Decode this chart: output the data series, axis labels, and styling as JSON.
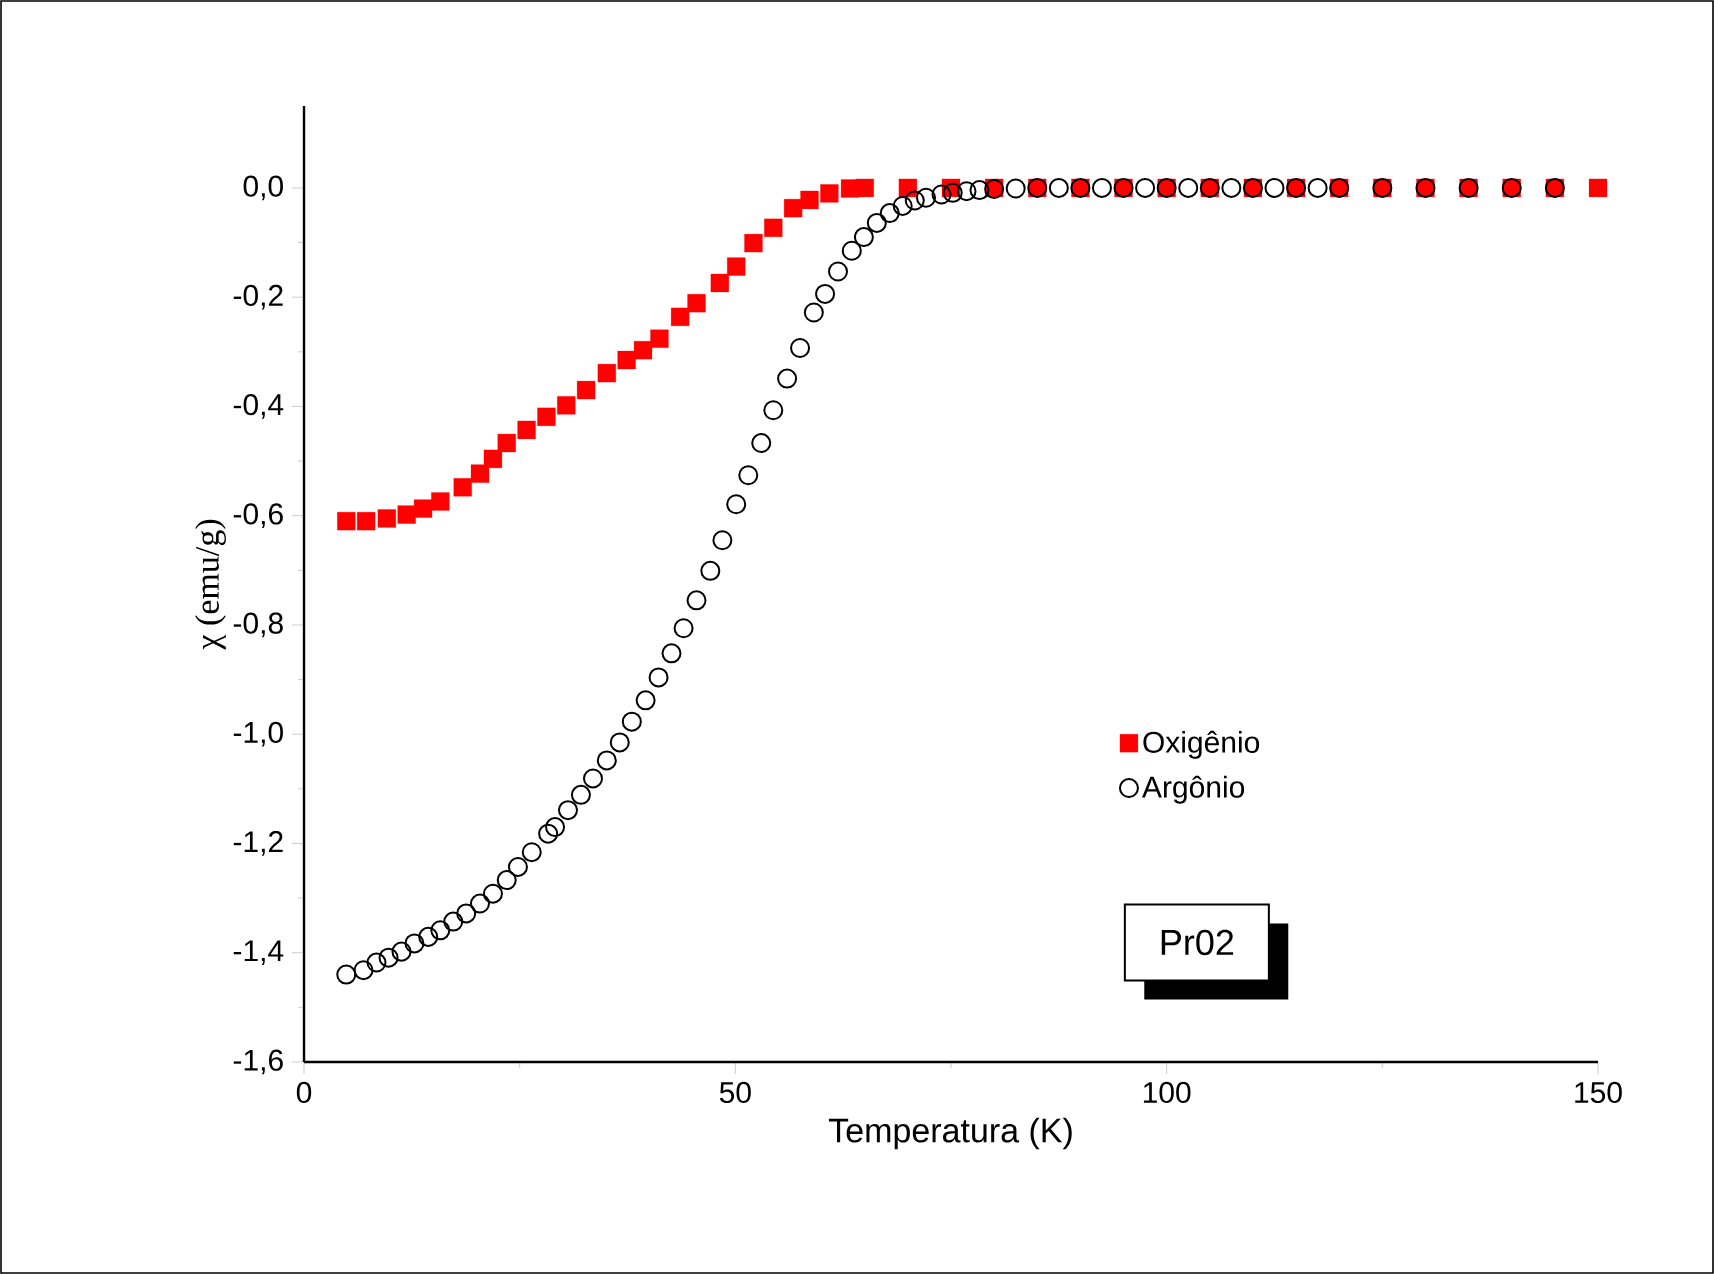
{
  "chart_data": {
    "type": "scatter",
    "xlabel": "Temperatura (K)",
    "ylabel": "χ (emu/g)",
    "xlim": [
      0,
      150
    ],
    "xticks": [
      0,
      50,
      100,
      150
    ],
    "ylim": [
      -1.6,
      0.15
    ],
    "yticks": [
      {
        "value": -1.6,
        "label": "-1,6"
      },
      {
        "value": -1.4,
        "label": "-1,4"
      },
      {
        "value": -1.2,
        "label": "-1,2"
      },
      {
        "value": -1.0,
        "label": "-1,0"
      },
      {
        "value": -0.8,
        "label": "-0,8"
      },
      {
        "value": -0.6,
        "label": "-0,6"
      },
      {
        "value": -0.4,
        "label": "-0,4"
      },
      {
        "value": -0.2,
        "label": "-0,2"
      },
      {
        "value": 0.0,
        "label": "0,0"
      }
    ],
    "legend": "right",
    "grid": false,
    "annotations": [
      "Pr02"
    ],
    "series": [
      {
        "name": "Oxigênio",
        "color": "#ff0000",
        "marker": "square",
        "x": [
          4.9,
          7.2,
          9.6,
          11.9,
          13.8,
          15.8,
          18.4,
          20.4,
          21.9,
          23.5,
          25.8,
          28.1,
          30.4,
          32.7,
          35.1,
          37.4,
          39.3,
          41.2,
          43.6,
          45.5,
          48.2,
          50.1,
          52.1,
          54.4,
          56.7,
          58.6,
          60.9,
          63.3,
          65,
          70,
          75,
          80,
          85,
          90,
          95,
          100,
          105,
          110,
          115,
          120,
          125,
          130,
          135,
          140,
          145,
          150
        ],
        "values": [
          -0.61,
          -0.61,
          -0.605,
          -0.598,
          -0.587,
          -0.574,
          -0.548,
          -0.523,
          -0.496,
          -0.467,
          -0.443,
          -0.419,
          -0.398,
          -0.37,
          -0.339,
          -0.315,
          -0.297,
          -0.276,
          -0.236,
          -0.211,
          -0.174,
          -0.144,
          -0.101,
          -0.073,
          -0.037,
          -0.022,
          -0.01,
          -0.001,
          0,
          0,
          0,
          0,
          0,
          0,
          0,
          0,
          0,
          0,
          0,
          0,
          0,
          0,
          0,
          0,
          0,
          0
        ]
      },
      {
        "name": "Argônio",
        "color": "#000000",
        "marker": "circle",
        "x": [
          4.9,
          6.9,
          8.4,
          9.8,
          11.3,
          12.8,
          14.4,
          15.8,
          17.3,
          18.8,
          20.4,
          21.9,
          23.5,
          24.8,
          26.4,
          28.3,
          29.1,
          30.6,
          32.1,
          33.5,
          35.1,
          36.6,
          38.0,
          39.6,
          41.1,
          42.6,
          44.0,
          45.5,
          47.1,
          48.5,
          50.1,
          51.5,
          53.0,
          54.4,
          56.0,
          57.5,
          59.1,
          60.4,
          61.9,
          63.5,
          64.9,
          66.4,
          67.9,
          69.4,
          70.8,
          72.1,
          73.9,
          75.2,
          76.8,
          78.3,
          80,
          82.5,
          85,
          87.5,
          90,
          92.5,
          95,
          97.5,
          100,
          102.5,
          105,
          107.5,
          110,
          112.5,
          115,
          117.5,
          120,
          125,
          130,
          135,
          140,
          145
        ],
        "values": [
          -1.44,
          -1.432,
          -1.418,
          -1.409,
          -1.398,
          -1.383,
          -1.371,
          -1.359,
          -1.343,
          -1.328,
          -1.31,
          -1.292,
          -1.267,
          -1.243,
          -1.216,
          -1.182,
          -1.17,
          -1.139,
          -1.111,
          -1.081,
          -1.048,
          -1.015,
          -0.977,
          -0.938,
          -0.896,
          -0.852,
          -0.806,
          -0.755,
          -0.701,
          -0.645,
          -0.579,
          -0.526,
          -0.467,
          -0.407,
          -0.349,
          -0.293,
          -0.228,
          -0.194,
          -0.153,
          -0.115,
          -0.09,
          -0.064,
          -0.046,
          -0.033,
          -0.023,
          -0.018,
          -0.012,
          -0.009,
          -0.006,
          -0.004,
          -0.002,
          -0.001,
          0,
          0,
          0,
          0,
          0,
          0,
          0,
          0,
          0,
          0,
          0,
          0,
          0,
          0,
          0,
          0,
          0,
          0,
          0,
          0
        ]
      }
    ]
  }
}
